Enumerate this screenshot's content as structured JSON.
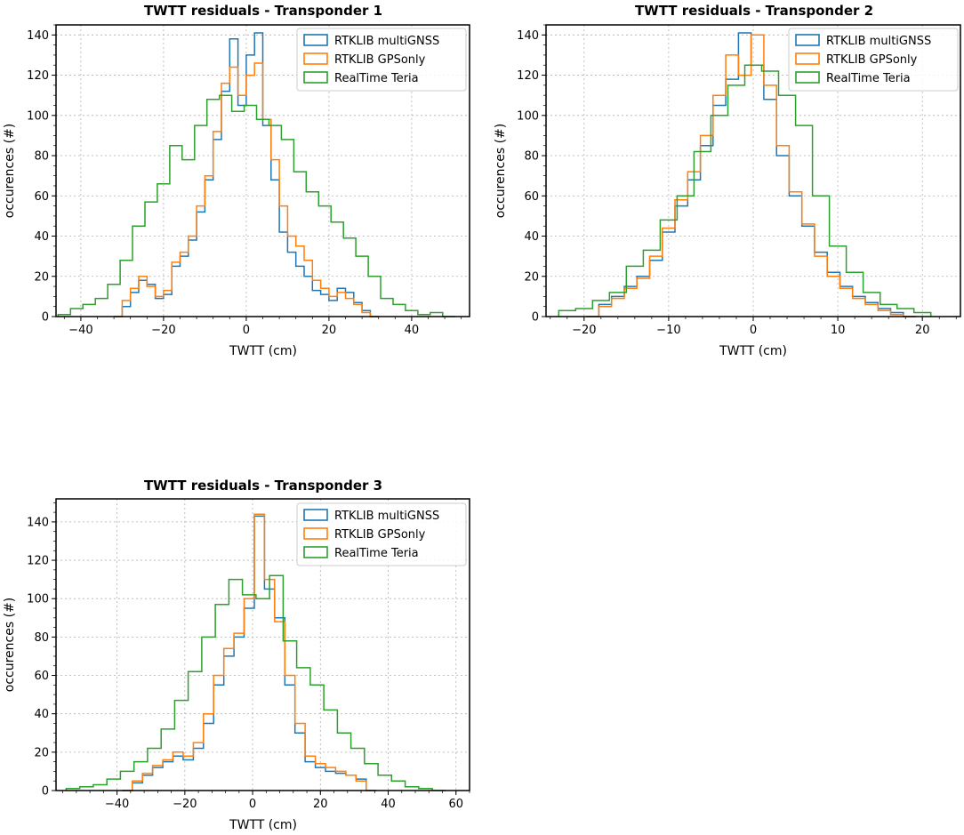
{
  "colors": {
    "multiGNSS": "#1f77b4",
    "GPSonly": "#ff7f0e",
    "Teria": "#2ca02c",
    "grid": "#b0b0b0",
    "frame": "#000000"
  },
  "chart_data": [
    {
      "type": "histogram",
      "title": "TWTT residuals - Transponder 1",
      "xlabel": "TWTT (cm)",
      "ylabel": "occurences (#)",
      "xlim": [
        -46,
        54
      ],
      "ylim": [
        0,
        145
      ],
      "xticks": [
        -40,
        -20,
        0,
        20,
        40
      ],
      "xtick_labels": [
        "−40",
        "−20",
        "0",
        "20",
        "40"
      ],
      "yticks": [
        0,
        20,
        40,
        60,
        80,
        100,
        120,
        140
      ],
      "ytick_labels": [
        "0",
        "20",
        "40",
        "60",
        "80",
        "100",
        "120",
        "140"
      ],
      "grid": true,
      "legend_position": "top-right",
      "series": [
        {
          "name": "RTKLIB multiGNSS",
          "color_key": "multiGNSS",
          "x": [
            -31,
            -29,
            -27,
            -25,
            -23,
            -21,
            -19,
            -17,
            -15,
            -13,
            -11,
            -9,
            -7,
            -5,
            -3,
            -1,
            1,
            3,
            5,
            7,
            9,
            11,
            13,
            15,
            17,
            19,
            21,
            23,
            25,
            27,
            29,
            31
          ],
          "values": [
            0,
            5,
            12,
            18,
            16,
            9,
            11,
            25,
            30,
            38,
            52,
            68,
            88,
            112,
            138,
            105,
            130,
            141,
            95,
            68,
            42,
            32,
            25,
            20,
            13,
            11,
            8,
            14,
            12,
            7,
            3,
            0
          ]
        },
        {
          "name": "RTKLIB GPSonly",
          "color_key": "GPSonly",
          "x": [
            -31,
            -29,
            -27,
            -25,
            -23,
            -21,
            -19,
            -17,
            -15,
            -13,
            -11,
            -9,
            -7,
            -5,
            -3,
            -1,
            1,
            3,
            5,
            7,
            9,
            11,
            13,
            15,
            17,
            19,
            21,
            23,
            25,
            27,
            29,
            31
          ],
          "values": [
            0,
            8,
            14,
            20,
            15,
            10,
            13,
            27,
            32,
            40,
            55,
            70,
            92,
            116,
            124,
            110,
            120,
            126,
            98,
            78,
            55,
            40,
            35,
            28,
            18,
            14,
            10,
            12,
            9,
            6,
            2,
            0
          ]
        },
        {
          "name": "RealTime Teria",
          "color_key": "Teria",
          "x": [
            -44,
            -41,
            -38,
            -35,
            -32,
            -29,
            -26,
            -23,
            -20,
            -17,
            -14,
            -11,
            -8,
            -5,
            -2,
            1,
            4,
            7,
            10,
            13,
            16,
            19,
            22,
            25,
            28,
            31,
            34,
            37,
            40,
            43,
            46,
            49
          ],
          "values": [
            1,
            4,
            6,
            9,
            16,
            28,
            45,
            57,
            66,
            85,
            78,
            95,
            108,
            110,
            102,
            105,
            98,
            95,
            88,
            72,
            62,
            55,
            47,
            39,
            30,
            20,
            9,
            6,
            3,
            1,
            2,
            0
          ]
        }
      ]
    },
    {
      "type": "histogram",
      "title": "TWTT residuals - Transponder 2",
      "xlabel": "TWTT (cm)",
      "ylabel": "occurences (#)",
      "xlim": [
        -24.5,
        24.5
      ],
      "ylim": [
        0,
        145
      ],
      "xticks": [
        -20,
        -10,
        0,
        10,
        20
      ],
      "xtick_labels": [
        "−20",
        "−10",
        "0",
        "10",
        "20"
      ],
      "yticks": [
        0,
        20,
        40,
        60,
        80,
        100,
        120,
        140
      ],
      "ytick_labels": [
        "0",
        "20",
        "40",
        "60",
        "80",
        "100",
        "120",
        "140"
      ],
      "grid": true,
      "legend_position": "top-right",
      "series": [
        {
          "name": "RTKLIB multiGNSS",
          "color_key": "multiGNSS",
          "x": [
            -19,
            -17.5,
            -16,
            -14.5,
            -13,
            -11.5,
            -10,
            -8.5,
            -7,
            -5.5,
            -4,
            -2.5,
            -1,
            0.5,
            2,
            3.5,
            5,
            6.5,
            8,
            9.5,
            11,
            12.5,
            14,
            15.5,
            17,
            18.5
          ],
          "values": [
            0,
            6,
            10,
            15,
            20,
            28,
            42,
            55,
            68,
            85,
            105,
            118,
            141,
            125,
            108,
            80,
            60,
            45,
            32,
            22,
            15,
            10,
            7,
            4,
            2,
            0
          ]
        },
        {
          "name": "RTKLIB GPSonly",
          "color_key": "GPSonly",
          "x": [
            -19,
            -17.5,
            -16,
            -14.5,
            -13,
            -11.5,
            -10,
            -8.5,
            -7,
            -5.5,
            -4,
            -2.5,
            -1,
            0.5,
            2,
            3.5,
            5,
            6.5,
            8,
            9.5,
            11,
            12.5,
            14,
            15.5,
            17,
            18.5
          ],
          "values": [
            0,
            5,
            9,
            14,
            19,
            30,
            44,
            58,
            72,
            90,
            110,
            130,
            120,
            140,
            115,
            85,
            62,
            46,
            30,
            20,
            14,
            9,
            6,
            3,
            1,
            0
          ]
        },
        {
          "name": "RealTime Teria",
          "color_key": "Teria",
          "x": [
            -22,
            -20,
            -18,
            -16,
            -14,
            -12,
            -10,
            -8,
            -6,
            -4,
            -2,
            0,
            2,
            4,
            6,
            8,
            10,
            12,
            14,
            16,
            18,
            20
          ],
          "values": [
            3,
            4,
            8,
            12,
            25,
            33,
            48,
            60,
            82,
            100,
            115,
            125,
            122,
            110,
            95,
            60,
            35,
            22,
            12,
            6,
            4,
            2
          ]
        }
      ]
    },
    {
      "type": "histogram",
      "title": "TWTT residuals - Transponder 3",
      "xlabel": "TWTT (cm)",
      "ylabel": "occurences (#)",
      "xlim": [
        -58,
        64
      ],
      "ylim": [
        0,
        152
      ],
      "xticks": [
        -40,
        -20,
        0,
        20,
        40,
        60
      ],
      "xtick_labels": [
        "−40",
        "−20",
        "0",
        "20",
        "40",
        "60"
      ],
      "yticks": [
        0,
        20,
        40,
        60,
        80,
        100,
        120,
        140
      ],
      "ytick_labels": [
        "0",
        "20",
        "40",
        "60",
        "80",
        "100",
        "120",
        "140"
      ],
      "grid": true,
      "legend_position": "top-right",
      "series": [
        {
          "name": "RTKLIB multiGNSS",
          "color_key": "multiGNSS",
          "x": [
            -37,
            -34,
            -31,
            -28,
            -25,
            -22,
            -19,
            -16,
            -13,
            -10,
            -7,
            -4,
            -1,
            2,
            5,
            8,
            11,
            14,
            17,
            20,
            23,
            26,
            29,
            32,
            35
          ],
          "values": [
            0,
            4,
            8,
            12,
            15,
            18,
            16,
            22,
            35,
            55,
            70,
            80,
            95,
            143,
            105,
            90,
            55,
            30,
            15,
            12,
            10,
            9,
            8,
            6,
            0
          ]
        },
        {
          "name": "RTKLIB GPSonly",
          "color_key": "GPSonly",
          "x": [
            -37,
            -34,
            -31,
            -28,
            -25,
            -22,
            -19,
            -16,
            -13,
            -10,
            -7,
            -4,
            -1,
            2,
            5,
            8,
            11,
            14,
            17,
            20,
            23,
            26,
            29,
            32,
            35
          ],
          "values": [
            0,
            5,
            9,
            13,
            16,
            20,
            18,
            25,
            40,
            60,
            74,
            82,
            100,
            144,
            110,
            88,
            60,
            35,
            18,
            14,
            12,
            10,
            8,
            5,
            0
          ]
        },
        {
          "name": "RealTime Teria",
          "color_key": "Teria",
          "x": [
            -53,
            -49,
            -45,
            -41,
            -37,
            -33,
            -29,
            -25,
            -21,
            -17,
            -13,
            -9,
            -5,
            -1,
            3,
            7,
            11,
            15,
            19,
            23,
            27,
            31,
            35,
            39,
            43,
            47,
            51,
            55
          ],
          "values": [
            1,
            2,
            3,
            6,
            10,
            15,
            22,
            32,
            47,
            62,
            80,
            97,
            110,
            102,
            100,
            112,
            78,
            64,
            55,
            42,
            30,
            22,
            14,
            8,
            5,
            2,
            1,
            0
          ]
        }
      ]
    }
  ]
}
